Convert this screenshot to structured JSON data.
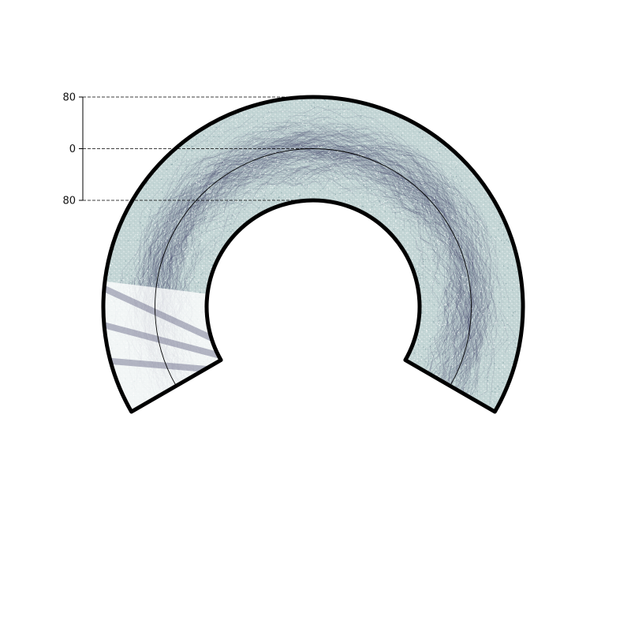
{
  "chart_data": {
    "type": "area",
    "title": "",
    "xlabel": "",
    "ylabel": "",
    "arc_span_deg": [
      -30,
      210
    ],
    "radial_axis": {
      "range": [
        -80,
        80
      ],
      "ticks": [
        {
          "value": 80,
          "label": "80"
        },
        {
          "value": 0,
          "label": "0"
        },
        {
          "value": -80,
          "label": "80"
        }
      ],
      "grid": "dashed"
    },
    "density": {
      "trace_count": 2200,
      "centerline_value": 0,
      "spread_sd": 28,
      "gap_sector_deg": [
        165,
        210
      ]
    }
  },
  "colors": {
    "fill_light": "#b7cdcd",
    "trace": "#3a3a62",
    "outline": "#000000",
    "tick_text": "#111111"
  }
}
